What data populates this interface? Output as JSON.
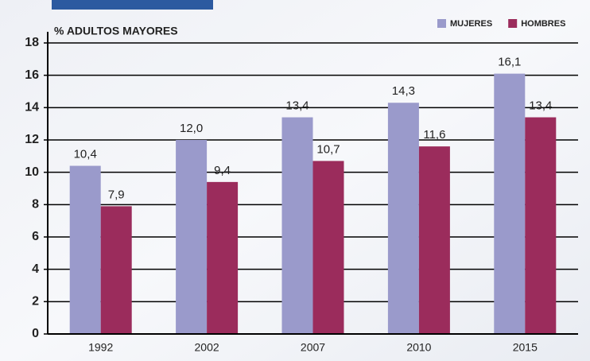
{
  "chart_data": {
    "type": "bar",
    "y_label": "% ADULTOS MAYORES",
    "categories": [
      "1992",
      "2002",
      "2007",
      "2010",
      "2015"
    ],
    "series": [
      {
        "name": "MUJERES",
        "color": "#9a9acb",
        "values": [
          10.4,
          12.0,
          13.4,
          14.3,
          16.1
        ],
        "value_labels": [
          "10,4",
          "12,0",
          "13,4",
          "14,3",
          "16,1"
        ]
      },
      {
        "name": "HOMBRES",
        "color": "#9b2c5c",
        "values": [
          7.9,
          9.4,
          10.7,
          11.6,
          13.4
        ],
        "value_labels": [
          "7,9",
          "9,4",
          "10,7",
          "11,6",
          "13,4"
        ]
      }
    ],
    "ylim": [
      0,
      18
    ],
    "yticks": [
      0,
      2,
      4,
      6,
      8,
      10,
      12,
      14,
      16,
      18
    ],
    "grid": true
  }
}
